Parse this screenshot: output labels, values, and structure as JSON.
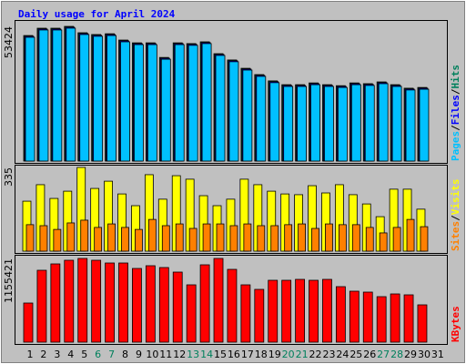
{
  "chart_data": [
    {
      "type": "bar",
      "title": "Daily usage for April 2024",
      "categories": [
        "1",
        "2",
        "3",
        "4",
        "5",
        "6",
        "7",
        "8",
        "9",
        "10",
        "11",
        "12",
        "13",
        "14",
        "15",
        "16",
        "17",
        "18",
        "19",
        "20",
        "21",
        "22",
        "23",
        "24",
        "25",
        "26",
        "27",
        "28",
        "29",
        "30",
        "31"
      ],
      "category_colors": [
        "#000000",
        "#000000",
        "#000000",
        "#000000",
        "#000000",
        "#00805c",
        "#00805c",
        "#000000",
        "#000000",
        "#000000",
        "#000000",
        "#000000",
        "#00805c",
        "#00805c",
        "#000000",
        "#000000",
        "#000000",
        "#000000",
        "#000000",
        "#00805c",
        "#00805c",
        "#000000",
        "#000000",
        "#000000",
        "#000000",
        "#000000",
        "#00805c",
        "#00805c",
        "#000000",
        "#000000",
        "#000000"
      ],
      "legend_separator": "/",
      "series": [
        {
          "name": "Hits",
          "color": "#00805c",
          "values": [
            49800,
            52700,
            52700,
            53424,
            50900,
            50200,
            50500,
            48000,
            46900,
            46900,
            41100,
            46900,
            46600,
            47300,
            42600,
            40100,
            36800,
            34300,
            31800,
            30300,
            30300,
            31000,
            30300,
            29900,
            31000,
            30700,
            31400,
            30300,
            28900,
            29200,
            null
          ]
        },
        {
          "name": "Files",
          "color": "#0000ff",
          "values": [
            49500,
            52400,
            52400,
            53124,
            50600,
            49900,
            50200,
            47700,
            46600,
            46600,
            40800,
            46600,
            46300,
            47000,
            42300,
            39800,
            36500,
            34000,
            31500,
            30000,
            30000,
            30700,
            30000,
            29600,
            30700,
            30400,
            31100,
            30000,
            28600,
            28900,
            null
          ]
        },
        {
          "name": "Pages",
          "color": "#00c0ff",
          "values": [
            49100,
            52000,
            52000,
            52724,
            50200,
            49500,
            49800,
            47300,
            46200,
            46200,
            40400,
            46200,
            45900,
            46600,
            41900,
            39400,
            36100,
            33600,
            31100,
            29600,
            29600,
            30300,
            29600,
            29200,
            30300,
            30000,
            30700,
            29600,
            28200,
            28500,
            null
          ]
        }
      ],
      "ylim": [
        0,
        53424
      ],
      "yticks": [
        53424
      ]
    },
    {
      "type": "bar",
      "series": [
        {
          "name": "Visits",
          "color": "#ffff00",
          "values": [
            200,
            266,
            211,
            240,
            335,
            251,
            280,
            229,
            182,
            306,
            208,
            302,
            288,
            222,
            182,
            208,
            288,
            266,
            240,
            229,
            226,
            262,
            233,
            266,
            226,
            189,
            138,
            248,
            248,
            168,
            null
          ]
        },
        {
          "name": "Sites",
          "color": "#ff8000",
          "values": [
            106,
            102,
            87,
            113,
            124,
            95,
            109,
            95,
            87,
            127,
            102,
            109,
            91,
            109,
            109,
            102,
            109,
            102,
            102,
            106,
            109,
            91,
            109,
            106,
            106,
            95,
            73,
            95,
            127,
            98,
            null
          ]
        }
      ],
      "ylim": [
        0,
        335
      ],
      "yticks": [
        335
      ]
    },
    {
      "type": "bar",
      "series": [
        {
          "name": "KBytes",
          "color": "#ff0000",
          "values": [
            540035,
            992153,
            1080067,
            1130304,
            1155421,
            1130304,
            1092626,
            1092626,
            1017274,
            1054950,
            1029832,
            967037,
            791212,
            1067509,
            1155421,
            1004714,
            791212,
            728417,
            854006,
            854006,
            866566,
            854006,
            866566,
            766094,
            703300,
            690740,
            627946,
            665623,
            653064,
            514916,
            null
          ]
        }
      ],
      "ylim": [
        0,
        1155421
      ],
      "yticks": [
        1155421
      ]
    }
  ]
}
